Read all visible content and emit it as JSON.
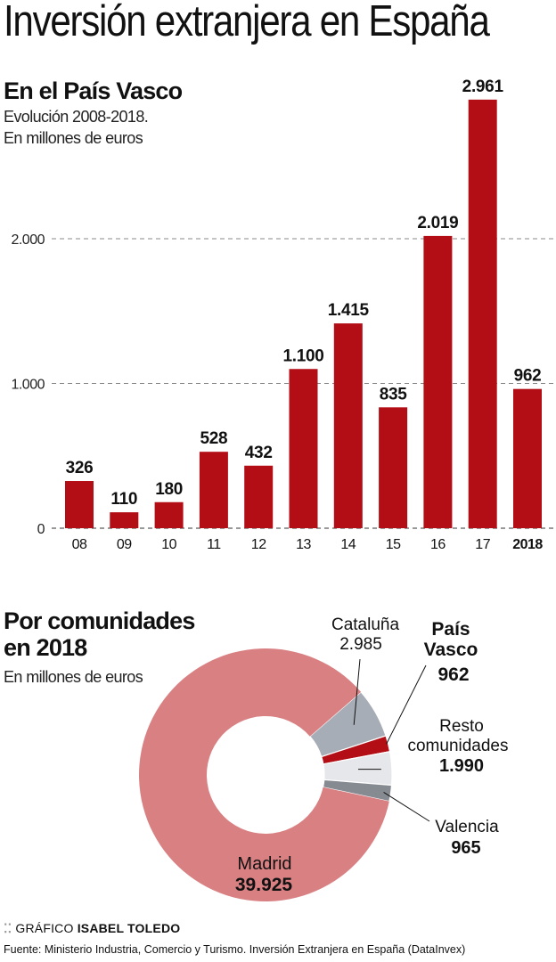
{
  "title": "Inversión extranjera en España",
  "chart_data": [
    {
      "type": "bar",
      "title": "En el País Vasco",
      "subtitle": [
        "Evolución 2008-2018.",
        "En millones de euros"
      ],
      "categories": [
        "08",
        "09",
        "10",
        "11",
        "12",
        "13",
        "14",
        "15",
        "16",
        "17",
        "2018"
      ],
      "values": [
        326,
        110,
        180,
        528,
        432,
        1100,
        1415,
        835,
        2019,
        2961,
        962
      ],
      "value_labels": [
        "326",
        "110",
        "180",
        "528",
        "432",
        "1.100",
        "1.415",
        "835",
        "2.019",
        "2.961",
        "962"
      ],
      "highlight_category": "2018",
      "xlabel": "",
      "ylabel": "",
      "ylim": [
        0,
        3000
      ],
      "yticks": [
        0,
        1000,
        2000
      ],
      "ytick_labels": [
        "0",
        "1.000",
        "2.000"
      ],
      "grid": true,
      "bar_color": "#b30d16"
    },
    {
      "type": "pie",
      "donut": true,
      "title": [
        "Por comunidades",
        "en 2018"
      ],
      "subtitle": "En millones de euros",
      "slices": [
        {
          "label": "Madrid",
          "value": 39925,
          "value_label": "39.925",
          "color": "#d98083"
        },
        {
          "label": "Cataluña",
          "value": 2985,
          "value_label": "2.985",
          "color": "#a7adb6"
        },
        {
          "label": "País Vasco",
          "value": 962,
          "value_label": "962",
          "color": "#b30d16",
          "bold": true
        },
        {
          "label": "Resto comunidades",
          "value": 1990,
          "value_label": "1.990",
          "color": "#e6e7ea"
        },
        {
          "label": "Valencia",
          "value": 965,
          "value_label": "965",
          "color": "#868b92"
        }
      ]
    }
  ],
  "footer": {
    "credit_prefix": "GRÁFICO",
    "credit_name": "ISABEL TOLEDO",
    "source": "Fuente: Ministerio Industria, Comercio y Turismo. Inversión Extranjera en España (DataInvex)"
  }
}
